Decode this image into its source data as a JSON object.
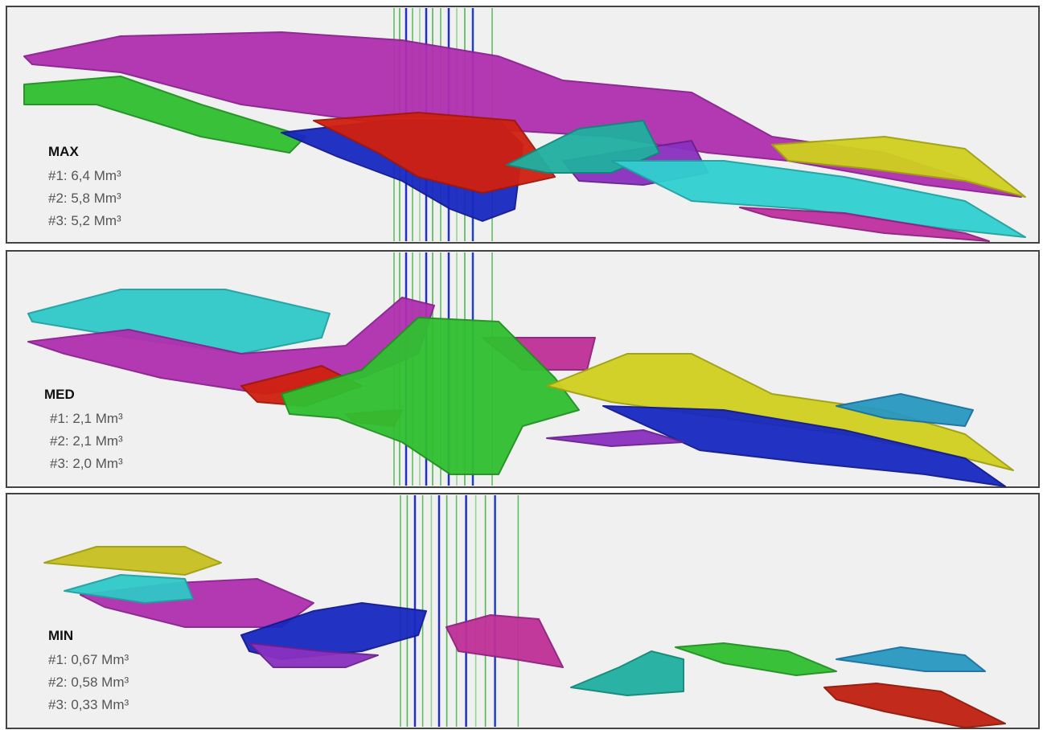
{
  "panels": [
    {
      "label": "MAX",
      "volumes": [
        "#1: 6,4 Mm³",
        "#2: 5,8 Mm³",
        "#3: 5,2 Mm³"
      ]
    },
    {
      "label": "MED",
      "volumes": [
        "#1: 2,1 Mm³",
        "#2: 2,1 Mm³",
        "#3: 2,0 Mm³"
      ]
    },
    {
      "label": "MIN",
      "volumes": [
        "#1: 0,67 Mm³",
        "#2: 0,58 Mm³",
        "#3: 0,33 Mm³"
      ]
    }
  ]
}
